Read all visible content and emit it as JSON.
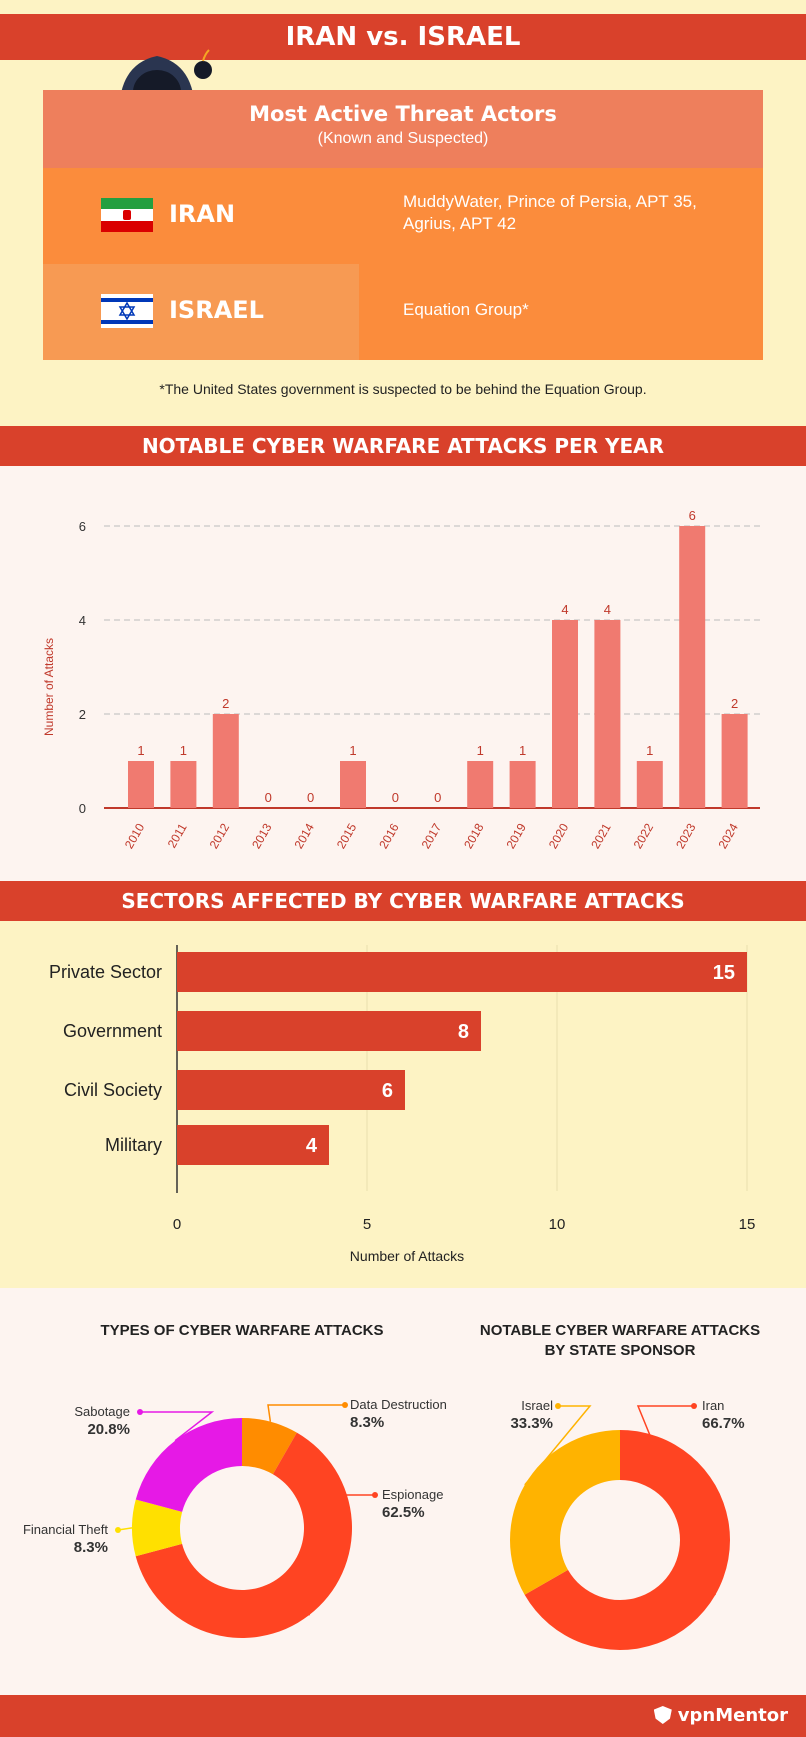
{
  "header": {
    "title": "IRAN vs. ISRAEL"
  },
  "threat_actors": {
    "title": "Most Active Threat Actors",
    "subtitle": "(Known and Suspected)",
    "rows": [
      {
        "country": "IRAN",
        "actors_line1": "MuddyWater, Prince of Persia, APT 35,",
        "actors_line2": "Agrius, APT 42"
      },
      {
        "country": "ISRAEL",
        "actors_line1": "Equation Group*",
        "actors_line2": ""
      }
    ],
    "footnote": "*The United States government is suspected to be behind the Equation Group."
  },
  "sections": {
    "per_year": "NOTABLE CYBER WARFARE ATTACKS PER YEAR",
    "sectors": "SECTORS AFFECTED BY CYBER WARFARE ATTACKS"
  },
  "footer": {
    "brand": "vpnMentor"
  },
  "colors": {
    "accent": "#d9412b",
    "bar_year": "#f07a70",
    "bar_sector": "#d9412b",
    "iran": "#ff4422",
    "israel": "#ffb300",
    "sabotage": "#e619e6",
    "financial": "#ffe000",
    "data_destruction": "#ff8c00",
    "espionage": "#ff4422"
  },
  "chart_data": [
    {
      "type": "bar",
      "title": "NOTABLE CYBER WARFARE ATTACKS PER YEAR",
      "ylabel": "Number of Attacks",
      "categories": [
        "2010",
        "2011",
        "2012",
        "2013",
        "2014",
        "2015",
        "2016",
        "2017",
        "2018",
        "2019",
        "2020",
        "2021",
        "2022",
        "2023",
        "2024"
      ],
      "values": [
        1,
        1,
        2,
        0,
        0,
        1,
        0,
        0,
        1,
        1,
        4,
        4,
        1,
        6,
        2
      ],
      "ylim": [
        0,
        6
      ],
      "yticks": [
        "0",
        "2",
        "4",
        "6"
      ]
    },
    {
      "type": "bar",
      "orientation": "horizontal",
      "title": "SECTORS AFFECTED BY CYBER WARFARE ATTACKS",
      "xlabel": "Number of Attacks",
      "categories": [
        "Private Sector",
        "Government",
        "Civil Society",
        "Military"
      ],
      "values": [
        15,
        8,
        6,
        4
      ],
      "xlim": [
        0,
        15
      ],
      "xticks": [
        "0",
        "5",
        "10",
        "15"
      ]
    },
    {
      "type": "pie",
      "title": "TYPES OF CYBER WARFARE ATTACKS",
      "labels": [
        "Data Destruction",
        "Espionage",
        "Financial Theft",
        "Sabotage"
      ],
      "values": [
        8.3,
        62.5,
        8.3,
        20.8
      ],
      "value_labels": [
        "8.3%",
        "62.5%",
        "8.3%",
        "20.8%"
      ]
    },
    {
      "type": "pie",
      "title_line1": "NOTABLE CYBER WARFARE ATTACKS",
      "title_line2": "BY STATE SPONSOR",
      "labels": [
        "Iran",
        "Israel"
      ],
      "values": [
        66.7,
        33.3
      ],
      "value_labels": [
        "66.7%",
        "33.3%"
      ]
    }
  ]
}
